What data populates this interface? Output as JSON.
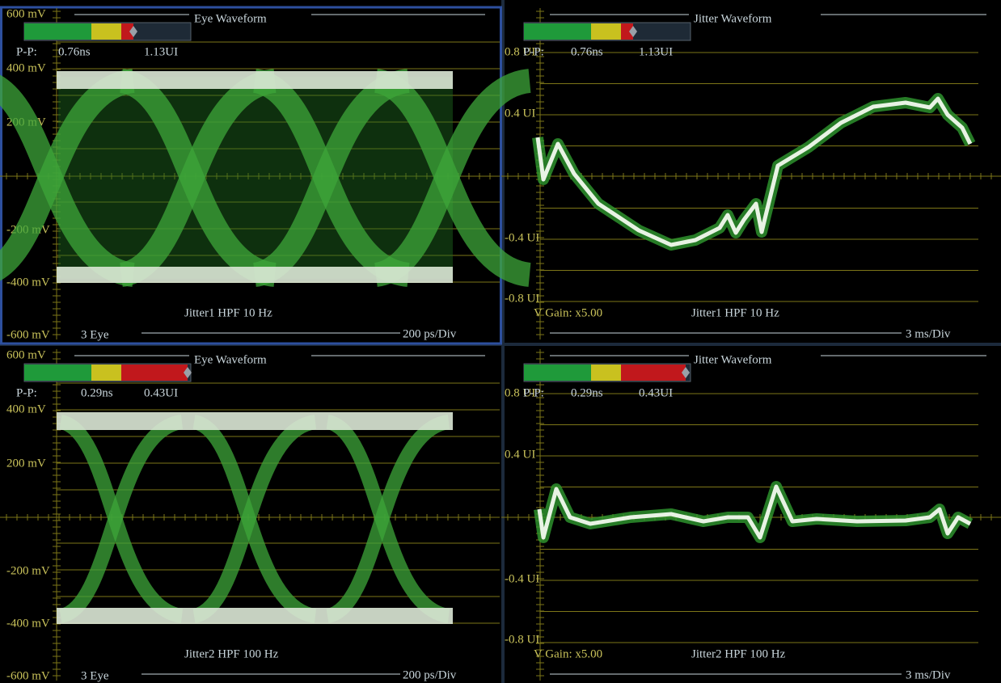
{
  "panels": [
    {
      "title": "Eye Waveform",
      "scale_labels": [
        "600 mV",
        "400 mV",
        "200 mV",
        "-200 mV",
        "-400 mV",
        "-600 mV"
      ],
      "readout": {
        "label": "P-P:",
        "time": "0.76ns",
        "ui": "1.13UI"
      },
      "footer_left": "3 Eye",
      "caption": "Jitter1 HPF 10 Hz",
      "footer_right": "200 ps/Div"
    },
    {
      "title": "Jitter Waveform",
      "scale_labels": [
        "0.8 UI",
        "0.4 UI",
        "-0.4 UI",
        "-0.8 UI"
      ],
      "readout": {
        "label": "P-P:",
        "time": "0.76ns",
        "ui": "1.13UI"
      },
      "gain": "V Gain: x5.00",
      "caption": "Jitter1 HPF 10 Hz",
      "footer_right": "3 ms/Div"
    },
    {
      "title": "Eye Waveform",
      "scale_labels": [
        "600 mV",
        "400 mV",
        "200 mV",
        "-200 mV",
        "-400 mV",
        "-600 mV"
      ],
      "readout": {
        "label": "P-P:",
        "time": "0.29ns",
        "ui": "0.43UI"
      },
      "footer_left": "3 Eye",
      "caption": "Jitter2 HPF 100 Hz",
      "footer_right": "200 ps/Div"
    },
    {
      "title": "Jitter Waveform",
      "scale_labels": [
        "0.8 UI",
        "0.4 UI",
        "-0.4 UI",
        "-0.8 UI"
      ],
      "readout": {
        "label": "P-P:",
        "time": "0.29ns",
        "ui": "0.43UI"
      },
      "gain": "V Gain: x5.00",
      "caption": "Jitter2 HPF 100 Hz",
      "footer_right": "3 ms/Div"
    }
  ]
}
